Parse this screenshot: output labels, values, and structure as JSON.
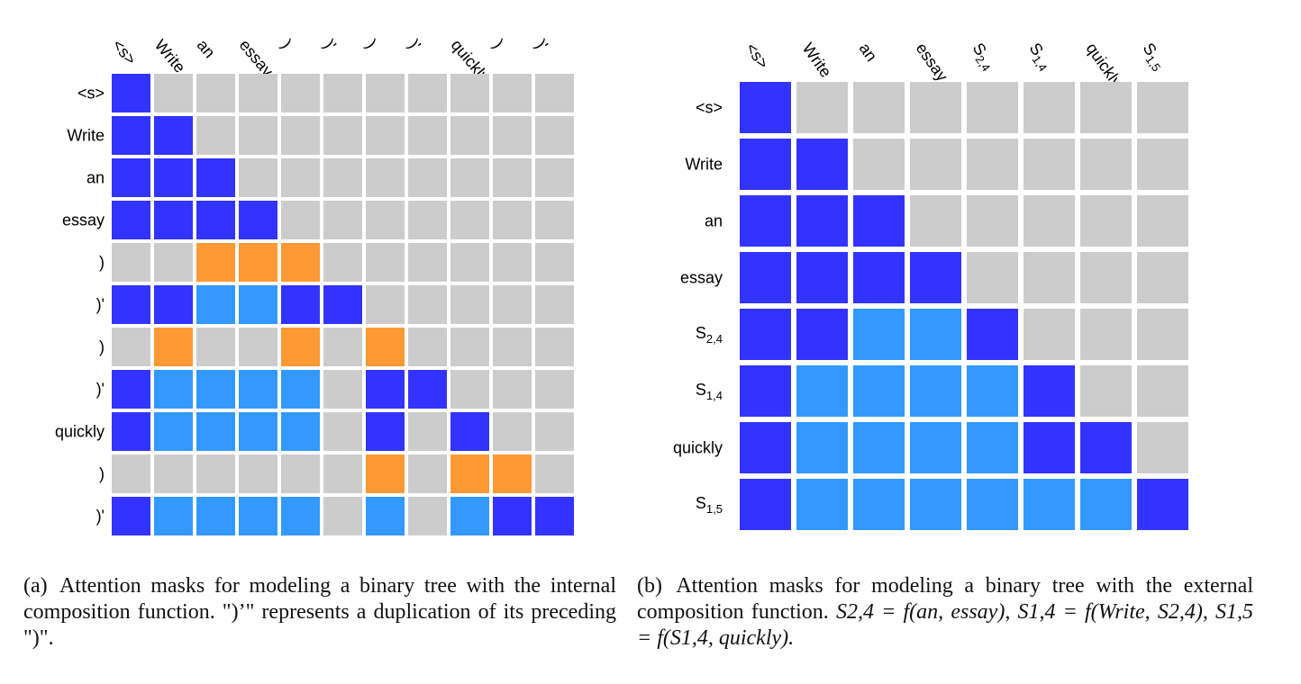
{
  "colors": {
    "gray": "#cccccc",
    "dark_blue": "#3333ff",
    "light_blue": "#3399ff",
    "orange": "#ff9933"
  },
  "legend_codes": {
    "0": "gray",
    "1": "dark_blue",
    "2": "light_blue",
    "3": "orange"
  },
  "panel_a": {
    "col_labels": [
      "<s>",
      "Write",
      "an",
      "essay",
      ")",
      ")'",
      ")",
      ")'",
      "quickly",
      ")",
      ")'"
    ],
    "row_labels": [
      "<s>",
      "Write",
      "an",
      "essay",
      ")",
      ")'",
      ")",
      ")'",
      "quickly",
      ")",
      ")'"
    ],
    "mask": [
      [
        1,
        0,
        0,
        0,
        0,
        0,
        0,
        0,
        0,
        0,
        0
      ],
      [
        1,
        1,
        0,
        0,
        0,
        0,
        0,
        0,
        0,
        0,
        0
      ],
      [
        1,
        1,
        1,
        0,
        0,
        0,
        0,
        0,
        0,
        0,
        0
      ],
      [
        1,
        1,
        1,
        1,
        0,
        0,
        0,
        0,
        0,
        0,
        0
      ],
      [
        0,
        0,
        3,
        3,
        3,
        0,
        0,
        0,
        0,
        0,
        0
      ],
      [
        1,
        1,
        2,
        2,
        1,
        1,
        0,
        0,
        0,
        0,
        0
      ],
      [
        0,
        3,
        0,
        0,
        3,
        0,
        3,
        0,
        0,
        0,
        0
      ],
      [
        1,
        2,
        2,
        2,
        2,
        0,
        1,
        1,
        0,
        0,
        0
      ],
      [
        1,
        2,
        2,
        2,
        2,
        0,
        1,
        0,
        1,
        0,
        0
      ],
      [
        0,
        0,
        0,
        0,
        0,
        0,
        3,
        0,
        3,
        3,
        0
      ],
      [
        1,
        2,
        2,
        2,
        2,
        0,
        2,
        0,
        2,
        1,
        1
      ]
    ],
    "caption_tag": "(a)",
    "caption": "Attention masks for modeling a binary tree with the internal composition function. \")’\" represents a duplication of its preceding \")\"."
  },
  "panel_b": {
    "col_labels": [
      {
        "base": "<s>",
        "sub": ""
      },
      {
        "base": "Write",
        "sub": ""
      },
      {
        "base": "an",
        "sub": ""
      },
      {
        "base": "essay",
        "sub": ""
      },
      {
        "base": "S",
        "sub": "2,4"
      },
      {
        "base": "S",
        "sub": "1,4"
      },
      {
        "base": "quickly",
        "sub": ""
      },
      {
        "base": "S",
        "sub": "1,5"
      }
    ],
    "row_labels": [
      {
        "base": "<s>",
        "sub": ""
      },
      {
        "base": "Write",
        "sub": ""
      },
      {
        "base": "an",
        "sub": ""
      },
      {
        "base": "essay",
        "sub": ""
      },
      {
        "base": "S",
        "sub": "2,4"
      },
      {
        "base": "S",
        "sub": "1,4"
      },
      {
        "base": "quickly",
        "sub": ""
      },
      {
        "base": "S",
        "sub": "1,5"
      }
    ],
    "mask": [
      [
        1,
        0,
        0,
        0,
        0,
        0,
        0,
        0
      ],
      [
        1,
        1,
        0,
        0,
        0,
        0,
        0,
        0
      ],
      [
        1,
        1,
        1,
        0,
        0,
        0,
        0,
        0
      ],
      [
        1,
        1,
        1,
        1,
        0,
        0,
        0,
        0
      ],
      [
        1,
        1,
        2,
        2,
        1,
        0,
        0,
        0
      ],
      [
        1,
        2,
        2,
        2,
        2,
        1,
        0,
        0
      ],
      [
        1,
        2,
        2,
        2,
        2,
        1,
        1,
        0
      ],
      [
        1,
        2,
        2,
        2,
        2,
        2,
        2,
        1
      ]
    ],
    "caption_tag": "(b)",
    "caption_text": "Attention masks for modeling a binary tree with the external composition function.",
    "caption_math": "S2,4 = f(an, essay), S1,4 = f(Write, S2,4), S1,5 = f(S1,4, quickly)."
  }
}
